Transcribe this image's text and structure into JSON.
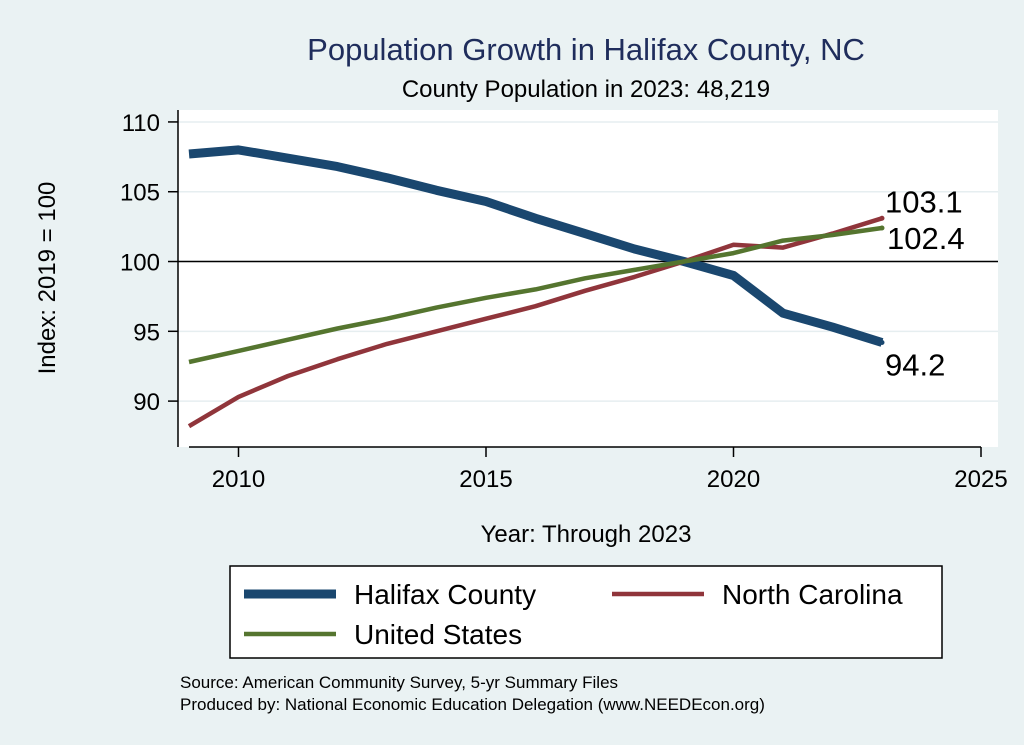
{
  "chart_data": {
    "type": "line",
    "title": "Population Growth in Halifax County, NC",
    "subtitle": "County Population in 2023: 48,219",
    "xlabel": "Year: Through 2023",
    "ylabel": "Index: 2019 = 100",
    "xlim": [
      2009,
      2025
    ],
    "ylim": [
      87.5,
      111.5
    ],
    "xticks": [
      2010,
      2015,
      2020,
      2025
    ],
    "yticks": [
      90,
      95,
      100,
      105,
      110
    ],
    "reference_line": 100,
    "series": [
      {
        "name": "Halifax  County",
        "color": "#1a476f",
        "x": [
          2009,
          2010,
          2011,
          2012,
          2013,
          2014,
          2015,
          2016,
          2017,
          2018,
          2019,
          2020,
          2021,
          2022,
          2023
        ],
        "values": [
          107.7,
          108.0,
          107.4,
          106.8,
          106.0,
          105.1,
          104.3,
          103.1,
          102.0,
          100.9,
          100.0,
          99.0,
          96.3,
          95.3,
          94.2
        ],
        "end_label": "94.2"
      },
      {
        "name": "North Carolina",
        "color": "#90353b",
        "x": [
          2009,
          2010,
          2011,
          2012,
          2013,
          2014,
          2015,
          2016,
          2017,
          2018,
          2019,
          2020,
          2021,
          2022,
          2023
        ],
        "values": [
          88.2,
          90.3,
          91.8,
          93.0,
          94.1,
          95.0,
          95.9,
          96.8,
          97.9,
          98.9,
          100.0,
          101.2,
          101.0,
          102.0,
          103.1
        ],
        "end_label": "103.1"
      },
      {
        "name": "United States",
        "color": "#55752f",
        "x": [
          2009,
          2010,
          2011,
          2012,
          2013,
          2014,
          2015,
          2016,
          2017,
          2018,
          2019,
          2020,
          2021,
          2022,
          2023
        ],
        "values": [
          92.8,
          93.6,
          94.4,
          95.2,
          95.9,
          96.7,
          97.4,
          98.0,
          98.8,
          99.4,
          100.0,
          100.6,
          101.5,
          101.9,
          102.4
        ],
        "end_label": "102.4"
      }
    ],
    "legend": {
      "placement": "bottom",
      "entries": [
        "Halifax  County",
        "North Carolina",
        "United States"
      ]
    },
    "source_lines": [
      "Source: American Community Survey, 5-yr Summary Files",
      "Produced by: National Economic Education Delegation (www.NEEDEcon.org)"
    ]
  },
  "colors": {
    "background": "#eaf2f3",
    "plot_background": "#ffffff",
    "title": "#1f2d5c"
  }
}
